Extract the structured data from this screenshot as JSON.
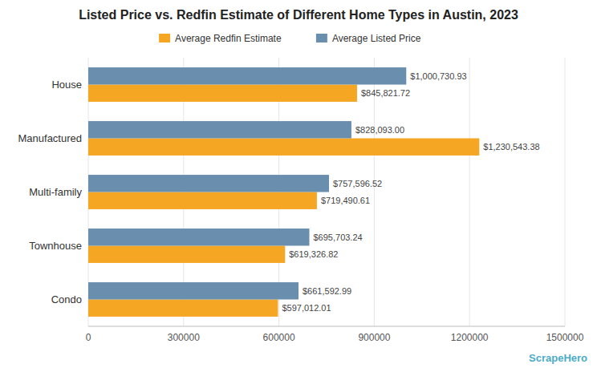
{
  "chart_data": {
    "type": "bar",
    "orientation": "horizontal",
    "title": "Listed Price vs. Redfin Estimate of Different Home Types in Austin, 2023",
    "categories": [
      "House",
      "Manufactured",
      "Multi-family",
      "Townhouse",
      "Condo"
    ],
    "series": [
      {
        "name": "Average Redfin Estimate",
        "color": "#F5A623",
        "values": [
          845821.72,
          1230543.38,
          719490.61,
          619326.82,
          597012.01
        ],
        "value_labels": [
          "$845,821.72",
          "$1,230,543.38",
          "$719,490.61",
          "$619,326.82",
          "$597,012.01"
        ]
      },
      {
        "name": "Average Listed Price",
        "color": "#6A8EAE",
        "values": [
          1000730.93,
          828093.0,
          757596.52,
          695703.24,
          661592.99
        ],
        "value_labels": [
          "$1,000,730.93",
          "$828,093.00",
          "$757,596.52",
          "$695,703.24",
          "$661,592.99"
        ]
      }
    ],
    "xlim": [
      0,
      1500000
    ],
    "xticks": [
      0,
      300000,
      600000,
      900000,
      1200000,
      1500000
    ],
    "grid": true,
    "legend": "top",
    "data_labels": true,
    "annotations": [
      "ScrapeHero"
    ]
  }
}
